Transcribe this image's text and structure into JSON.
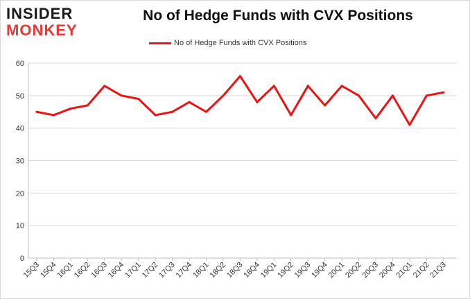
{
  "logo": {
    "line1": "INSIDER",
    "line2": "MONKEY"
  },
  "colors": {
    "series": "#ee1111",
    "grid": "#d9d9d9",
    "logo_accent": "#e53935"
  },
  "chart_data": {
    "type": "line",
    "title": "No of Hedge Funds with CVX Positions",
    "xlabel": "",
    "ylabel": "",
    "ylim": [
      0,
      60
    ],
    "yticks": [
      0,
      10,
      20,
      30,
      40,
      50,
      60
    ],
    "grid": "horizontal",
    "legend_position": "top-center",
    "categories": [
      "15Q3",
      "15Q4",
      "16Q1",
      "16Q2",
      "16Q3",
      "16Q4",
      "17Q1",
      "17Q2",
      "17Q3",
      "17Q4",
      "18Q1",
      "18Q2",
      "18Q3",
      "18Q4",
      "19Q1",
      "19Q2",
      "19Q3",
      "19Q4",
      "20Q1",
      "20Q2",
      "20Q3",
      "20Q4",
      "21Q1",
      "21Q2",
      "21Q3"
    ],
    "series": [
      {
        "name": "No of Hedge Funds with CVX Positions",
        "values": [
          45,
          44,
          46,
          47,
          53,
          50,
          49,
          44,
          45,
          48,
          45,
          50,
          56,
          48,
          53,
          44,
          53,
          47,
          53,
          50,
          43,
          50,
          41,
          50,
          51
        ]
      }
    ]
  }
}
